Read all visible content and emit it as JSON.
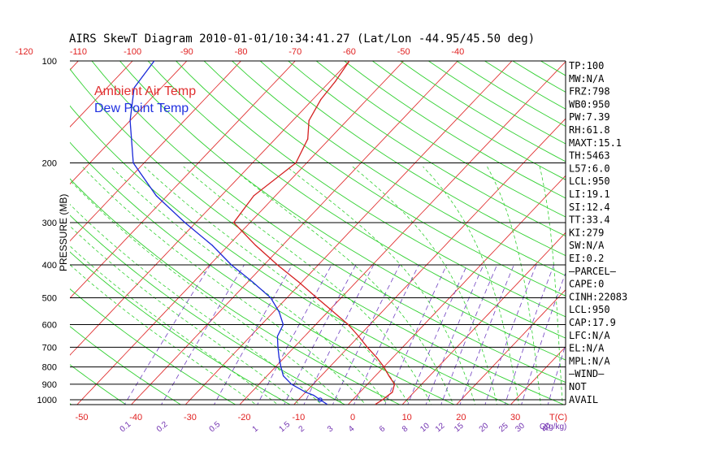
{
  "chart_data": {
    "type": "line",
    "title": "AIRS SkewT Diagram 2010-01-01/10:34:41.27 (Lat/Lon -44.95/45.50 deg)",
    "ylabel": "PRESSURE (MB)",
    "y_scale": "log",
    "y_inverted": true,
    "ylim": [
      1050,
      100
    ],
    "pressure_ticks": [
      100,
      200,
      300,
      400,
      500,
      600,
      700,
      800,
      900,
      1000
    ],
    "bottom_temp_ticks": [
      -50,
      -40,
      -30,
      -20,
      -10,
      0,
      10,
      20,
      30
    ],
    "bottom_temp_unit": "T(C)",
    "top_temp_ticks": [
      -120,
      -110,
      -100,
      -90,
      -80,
      -70,
      -60,
      -50,
      -40
    ],
    "mixing_ratio_labels": [
      "0.1",
      "0.2",
      "0.5",
      "1",
      "1.5",
      "2",
      "3",
      "4",
      "6",
      "8",
      "10",
      "12",
      "15",
      "20",
      "25",
      "30",
      "40"
    ],
    "mixing_ratio_unit": "Q(g/kg)",
    "legend": [
      {
        "name": "Ambient Air Temp",
        "color": "#e03030"
      },
      {
        "name": "Dew Point Temp",
        "color": "#2030e0"
      }
    ],
    "series": [
      {
        "name": "Ambient Air Temp",
        "color": "#d42020",
        "points": [
          {
            "p": 1030,
            "t": 5.0
          },
          {
            "p": 1000,
            "t": 5.5
          },
          {
            "p": 950,
            "t": 6.0
          },
          {
            "p": 900,
            "t": 5.0
          },
          {
            "p": 850,
            "t": 2.5
          },
          {
            "p": 800,
            "t": 0.0
          },
          {
            "p": 750,
            "t": -3.0
          },
          {
            "p": 700,
            "t": -6.5
          },
          {
            "p": 650,
            "t": -10.0
          },
          {
            "p": 600,
            "t": -14.0
          },
          {
            "p": 550,
            "t": -19.0
          },
          {
            "p": 500,
            "t": -24.5
          },
          {
            "p": 450,
            "t": -30.5
          },
          {
            "p": 400,
            "t": -37.5
          },
          {
            "p": 350,
            "t": -45.0
          },
          {
            "p": 300,
            "t": -53.0
          },
          {
            "p": 250,
            "t": -54.0
          },
          {
            "p": 200,
            "t": -52.0
          },
          {
            "p": 170,
            "t": -54.0
          },
          {
            "p": 150,
            "t": -57.0
          },
          {
            "p": 130,
            "t": -58.5
          },
          {
            "p": 115,
            "t": -59.0
          },
          {
            "p": 100,
            "t": -60.0
          }
        ]
      },
      {
        "name": "Dew Point Temp",
        "color": "#1a28d8",
        "points": [
          {
            "p": 1030,
            "t": -4.0
          },
          {
            "p": 1000,
            "t": -6.0
          },
          {
            "p": 970,
            "t": -8.0
          },
          {
            "p": 950,
            "t": -10.0
          },
          {
            "p": 900,
            "t": -14.0
          },
          {
            "p": 850,
            "t": -17.0
          },
          {
            "p": 800,
            "t": -19.0
          },
          {
            "p": 750,
            "t": -21.0
          },
          {
            "p": 700,
            "t": -23.0
          },
          {
            "p": 650,
            "t": -25.0
          },
          {
            "p": 600,
            "t": -26.0
          },
          {
            "p": 550,
            "t": -29.0
          },
          {
            "p": 500,
            "t": -33.0
          },
          {
            "p": 450,
            "t": -39.0
          },
          {
            "p": 400,
            "t": -46.0
          },
          {
            "p": 350,
            "t": -53.0
          },
          {
            "p": 300,
            "t": -62.0
          },
          {
            "p": 250,
            "t": -72.0
          },
          {
            "p": 200,
            "t": -82.0
          },
          {
            "p": 150,
            "t": -90.0
          },
          {
            "p": 120,
            "t": -95.0
          },
          {
            "p": 100,
            "t": -96.0
          }
        ]
      }
    ],
    "grid": true
  },
  "indices": [
    "TP:100",
    "MW:N/A",
    "FRZ:798",
    "WB0:950",
    "PW:7.39",
    "RH:61.8",
    "MAXT:15.1",
    "TH:5463",
    "L57:6.0",
    "LCL:950",
    "LI:19.1",
    "SI:12.4",
    "TT:33.4",
    "KI:279",
    "SW:N/A",
    "EI:0.2",
    "–PARCEL–",
    "CAPE:0",
    "CINH:22083",
    "LCL:950",
    "CAP:17.9",
    "LFC:N/A",
    "EL:N/A",
    "MPL:N/A",
    "–WIND–",
    "NOT",
    "AVAIL"
  ],
  "colors": {
    "isotherm": "#e03030",
    "dry_adiabat": "#30d030",
    "moist_adiabat": "#30d030",
    "mixing_ratio": "#7040c0",
    "axis_text_red": "#e02020",
    "axis_text_purple": "#7030b0"
  }
}
